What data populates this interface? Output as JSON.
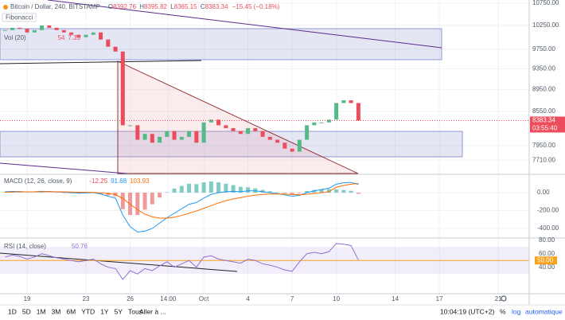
{
  "header": {
    "symbol": "Bitcoin / Dollar, 240, BITSTAMP",
    "ohlc": [
      {
        "label": "O",
        "value": "8392.76"
      },
      {
        "label": "H",
        "value": "8395.82"
      },
      {
        "label": "L",
        "value": "8365.15"
      },
      {
        "label": "C",
        "value": "8383.34"
      }
    ],
    "change": "−15.45 (−0.18%)"
  },
  "legend": {
    "fibonacci": "Fibonacci",
    "volume": "Vol (20)",
    "volume_values": [
      "54",
      "7.39"
    ]
  },
  "xlim": [
    -1.84,
    34.1
  ],
  "xticks": [
    {
      "value": 0,
      "label": "19"
    },
    {
      "value": 4,
      "label": "23"
    },
    {
      "value": 7,
      "label": "26"
    },
    {
      "value": 9.58,
      "label": "14:00"
    },
    {
      "value": 12,
      "label": "Oct"
    },
    {
      "value": 15,
      "label": "4"
    },
    {
      "value": 18,
      "label": "7"
    },
    {
      "value": 21,
      "label": "10"
    },
    {
      "value": 25,
      "label": "14"
    },
    {
      "value": 28,
      "label": "17"
    },
    {
      "value": 32,
      "label": "21"
    }
  ],
  "x": [
    -1.5,
    -1,
    -0.5,
    0,
    0.5,
    1,
    1.5,
    2,
    2.5,
    3,
    3.5,
    4,
    4.5,
    5,
    5.5,
    6,
    6.5,
    7,
    7.5,
    8,
    8.5,
    9,
    9.5,
    10,
    10.5,
    11,
    11.5,
    12,
    12.5,
    13,
    13.5,
    14,
    14.5,
    15,
    15.5,
    16,
    16.5,
    17,
    17.5,
    18,
    18.5,
    19,
    19.5,
    20,
    20.5,
    21,
    21.5,
    22,
    22.5
  ],
  "main_pane": {
    "type": "candlestick",
    "log": true,
    "close": [
      10150,
      10200,
      10180,
      10100,
      10150,
      10250,
      10200,
      10150,
      10100,
      10050,
      10000,
      10050,
      10100,
      9950,
      9800,
      9700,
      8300,
      8300,
      8050,
      8150,
      8000,
      8100,
      8200,
      8050,
      8100,
      8200,
      8000,
      8350,
      8400,
      8300,
      8250,
      8200,
      8150,
      8250,
      8200,
      8100,
      8050,
      8000,
      7900,
      7850,
      8050,
      8300,
      8350,
      8350,
      8400,
      8700,
      8750,
      8700,
      8383.34
    ],
    "ylim": [
      7495,
      10817
    ],
    "yticks": [
      {
        "value": 10750,
        "label": "10750.00"
      },
      {
        "value": 10250,
        "label": "10250.00"
      },
      {
        "value": 9750,
        "label": "9750.00"
      },
      {
        "value": 9350,
        "label": "9350.00"
      },
      {
        "value": 8950,
        "label": "8950.00"
      },
      {
        "value": 8550,
        "label": "8550.00"
      },
      {
        "value": 7950,
        "label": "7950.00"
      },
      {
        "value": 7710,
        "label": "7710.00"
      }
    ],
    "up_color": "#53b987",
    "down_color": "#eb4d5c",
    "last_price": {
      "value": 8383.34,
      "label": "8383.34",
      "countdown": "03:55:40"
    }
  },
  "macd_pane": {
    "title": "MACD (12, 26, close, 9)",
    "legend_values": [
      "-12.25",
      "91.68",
      "103.93"
    ],
    "ylim": [
      -498,
      178
    ],
    "yticks": [
      {
        "value": 0,
        "label": "0.00"
      },
      {
        "value": -200,
        "label": "-200.00"
      },
      {
        "value": -400,
        "label": "-400.00"
      }
    ],
    "histogram": [
      5,
      7,
      3,
      -1,
      1,
      5,
      1,
      -2,
      -4,
      -7,
      -10,
      -6,
      -2,
      -13,
      -30,
      -40,
      -185,
      -250,
      -250,
      -190,
      -130,
      -55,
      5,
      45,
      75,
      100,
      95,
      115,
      125,
      115,
      100,
      85,
      65,
      60,
      48,
      30,
      16,
      5,
      -8,
      -19,
      -7,
      18,
      30,
      35,
      40,
      35,
      30,
      20,
      -12.25
    ],
    "macd": [
      10,
      15,
      12,
      8,
      10,
      15,
      12,
      8,
      5,
      0,
      -5,
      -3,
      0,
      -15,
      -40,
      -60,
      -250,
      -380,
      -440,
      -430,
      -400,
      -340,
      -280,
      -230,
      -180,
      -130,
      -110,
      -60,
      -20,
      0,
      10,
      15,
      10,
      20,
      20,
      10,
      0,
      -10,
      -25,
      -40,
      -30,
      0,
      20,
      35,
      50,
      95,
      110,
      115,
      91.68
    ],
    "signal": [
      5,
      8,
      9,
      9,
      9,
      10,
      11,
      10,
      9,
      7,
      5,
      3,
      2,
      -2,
      -10,
      -20,
      -65,
      -130,
      -190,
      -240,
      -270,
      -285,
      -285,
      -275,
      -255,
      -230,
      -205,
      -175,
      -145,
      -115,
      -90,
      -70,
      -55,
      -40,
      -28,
      -20,
      -16,
      -15,
      -17,
      -21,
      -23,
      -18,
      -10,
      0,
      10,
      60,
      80,
      95,
      103.93
    ],
    "macd_color": "#2196f3",
    "signal_color": "#ff6d00",
    "pos_color": "#80cbc4",
    "neg_color": "#ef9a9a"
  },
  "rsi_pane": {
    "title": "RSI (14, close)",
    "legend_value": "50.76",
    "ylim": [
      2,
      82
    ],
    "yticks": [
      {
        "value": 80,
        "label": "80.00"
      },
      {
        "value": 60,
        "label": "60.00"
      },
      {
        "value": 40,
        "label": "40.00"
      }
    ],
    "band": [
      30,
      70
    ],
    "midline": {
      "value": 50,
      "label": "50.00"
    },
    "values": [
      55,
      58,
      56,
      52,
      55,
      60,
      57,
      54,
      52,
      50,
      48,
      50,
      52,
      45,
      40,
      38,
      22,
      35,
      30,
      38,
      35,
      42,
      48,
      40,
      45,
      50,
      40,
      55,
      57,
      52,
      50,
      48,
      46,
      52,
      50,
      45,
      43,
      40,
      36,
      34,
      48,
      60,
      62,
      60,
      63,
      75,
      74,
      72,
      50.76
    ],
    "color": "#8e6fd1"
  },
  "toolbar": {
    "ranges": [
      "1D",
      "5D",
      "1M",
      "3M",
      "6M",
      "YTD",
      "1Y",
      "5Y",
      "Tous"
    ],
    "goto": "Aller à ...",
    "clock": "10:04:19 (UTC+2)",
    "percent": "%",
    "log": "log",
    "auto": "automatique"
  }
}
